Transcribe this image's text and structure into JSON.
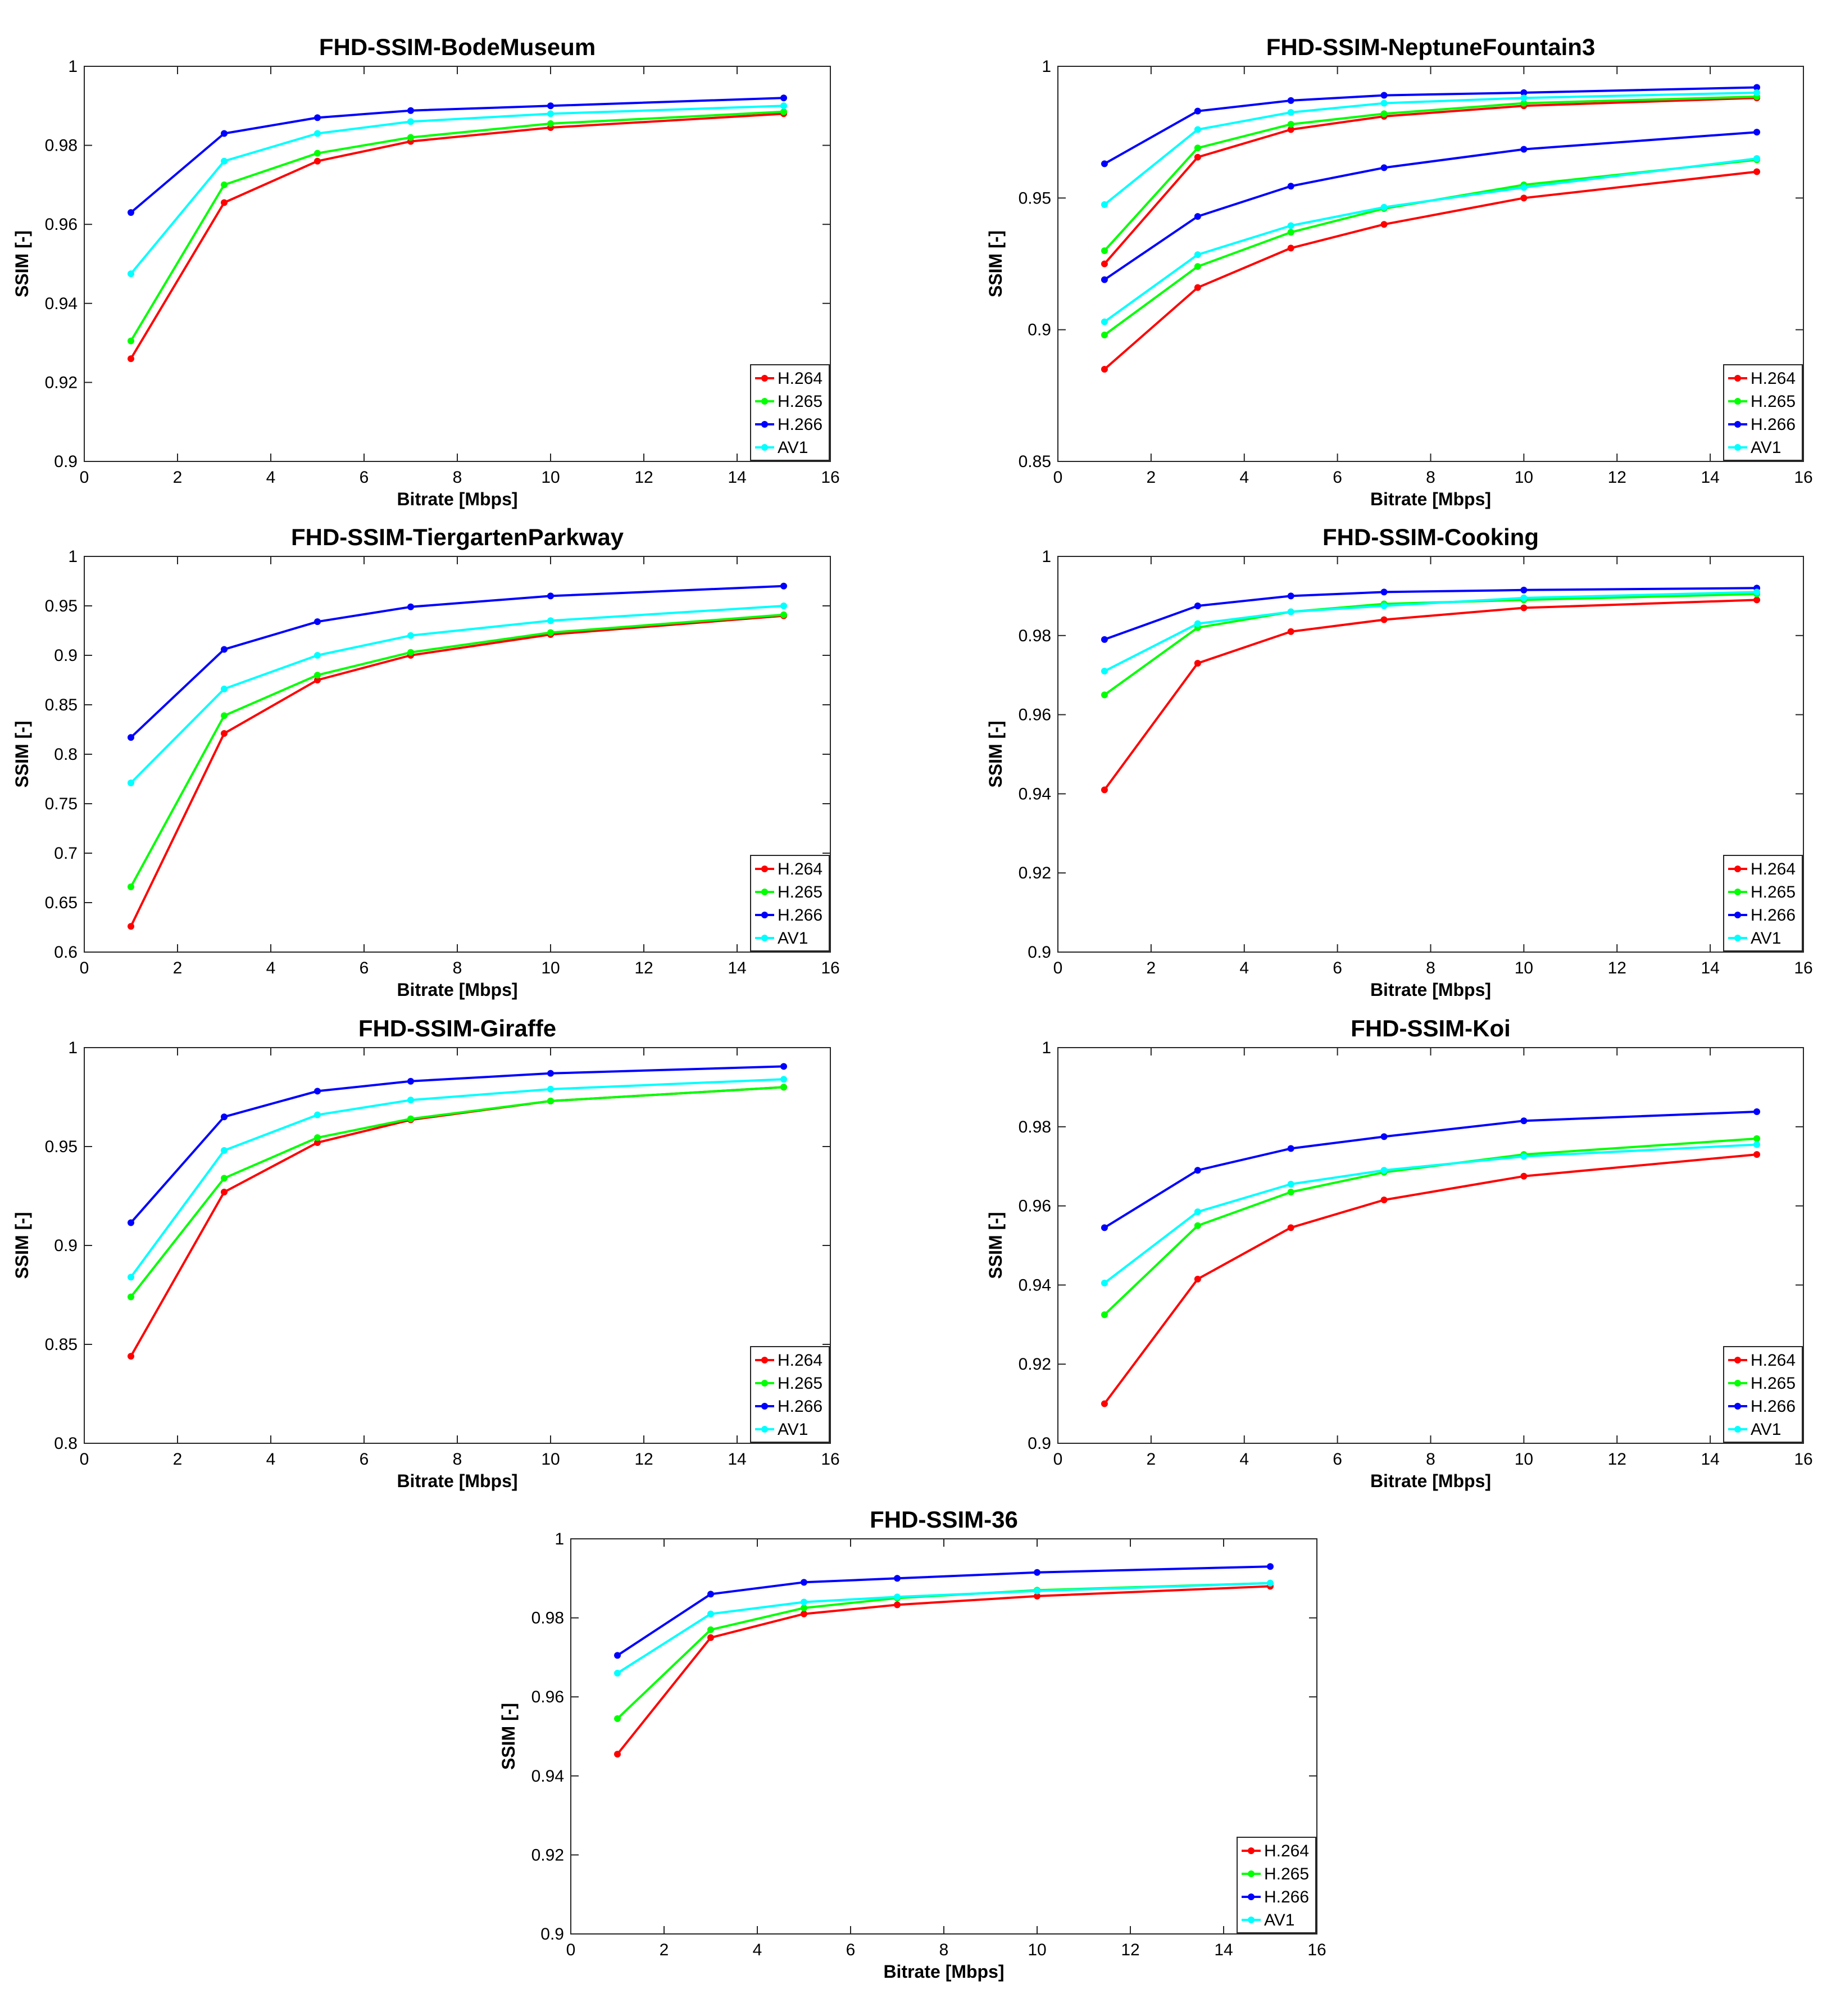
{
  "figure": {
    "grid": false
  },
  "chart_data": [
    {
      "type": "line",
      "title": "FHD-SSIM-BodeMuseum",
      "xlabel": "Bitrate [Mbps]",
      "ylabel": "SSIM [-]",
      "xlim": [
        0,
        16
      ],
      "ylim": [
        0.9,
        1
      ],
      "xticks": [
        0,
        2,
        4,
        6,
        8,
        10,
        12,
        14,
        16
      ],
      "xtick_labels": [
        "0",
        "2",
        "4",
        "6",
        "8",
        "10",
        "12",
        "14",
        "16"
      ],
      "yticks": [
        0.9,
        0.92,
        0.94,
        0.96,
        0.98,
        1
      ],
      "ytick_labels": [
        "0.9",
        "0.92",
        "0.94",
        "0.96",
        "0.98",
        "1"
      ],
      "legend_location": "bottom-right",
      "x": [
        1,
        3,
        5,
        7,
        10,
        15
      ],
      "series": [
        {
          "name": "H.264",
          "color": "#ff0000",
          "values": [
            0.926,
            0.9655,
            0.976,
            0.981,
            0.9845,
            0.988
          ]
        },
        {
          "name": "H.265",
          "color": "#00ff00",
          "values": [
            0.9305,
            0.97,
            0.978,
            0.982,
            0.9855,
            0.9885
          ]
        },
        {
          "name": "H.266",
          "color": "#0000ff",
          "values": [
            0.963,
            0.983,
            0.987,
            0.9888,
            0.99,
            0.992
          ]
        },
        {
          "name": "AV1",
          "color": "#00ffff",
          "values": [
            0.9475,
            0.976,
            0.983,
            0.986,
            0.988,
            0.99
          ]
        }
      ]
    },
    {
      "type": "line",
      "title": "FHD-SSIM-NeptuneFountain3",
      "xlabel": "Bitrate [Mbps]",
      "ylabel": "SSIM [-]",
      "xlim": [
        0,
        16
      ],
      "ylim": [
        0.85,
        1
      ],
      "xticks": [
        0,
        2,
        4,
        6,
        8,
        10,
        12,
        14,
        16
      ],
      "xtick_labels": [
        "0",
        "2",
        "4",
        "6",
        "8",
        "10",
        "12",
        "14",
        "16"
      ],
      "yticks": [
        0.85,
        0.9,
        0.95,
        1
      ],
      "ytick_labels": [
        "0.85",
        "0.9",
        "0.95",
        "1"
      ],
      "legend_location": "bottom-right",
      "x": [
        1,
        3,
        5,
        7,
        10,
        15
      ],
      "series": [
        {
          "name": "H.264",
          "color": "#ff0000",
          "values": [
            0.925,
            0.9655,
            0.976,
            0.981,
            0.985,
            0.988
          ]
        },
        {
          "name": "H.265",
          "color": "#00ff00",
          "values": [
            0.93,
            0.969,
            0.978,
            0.982,
            0.986,
            0.9885
          ]
        },
        {
          "name": "H.266",
          "color": "#0000ff",
          "values": [
            0.963,
            0.983,
            0.987,
            0.989,
            0.99,
            0.992
          ]
        },
        {
          "name": "AV1",
          "color": "#00ffff",
          "values": [
            0.9475,
            0.976,
            0.9825,
            0.986,
            0.988,
            0.99
          ]
        },
        {
          "name": "H.264",
          "color": "#ff0000",
          "values": [
            0.885,
            0.916,
            0.931,
            0.94,
            0.95,
            0.96
          ]
        },
        {
          "name": "H.265",
          "color": "#00ff00",
          "values": [
            0.898,
            0.924,
            0.937,
            0.946,
            0.955,
            0.9645
          ]
        },
        {
          "name": "H.266",
          "color": "#0000ff",
          "values": [
            0.919,
            0.943,
            0.9545,
            0.9615,
            0.9685,
            0.975
          ]
        },
        {
          "name": "AV1",
          "color": "#00ffff",
          "values": [
            0.903,
            0.9285,
            0.9395,
            0.9465,
            0.954,
            0.965
          ]
        }
      ],
      "legend_entries": 4
    },
    {
      "type": "line",
      "title": "FHD-SSIM-TiergartenParkway",
      "xlabel": "Bitrate [Mbps]",
      "ylabel": "SSIM [-]",
      "xlim": [
        0,
        16
      ],
      "ylim": [
        0.6,
        1
      ],
      "xticks": [
        0,
        2,
        4,
        6,
        8,
        10,
        12,
        14,
        16
      ],
      "xtick_labels": [
        "0",
        "2",
        "4",
        "6",
        "8",
        "10",
        "12",
        "14",
        "16"
      ],
      "yticks": [
        0.6,
        0.65,
        0.7,
        0.75,
        0.8,
        0.85,
        0.9,
        0.95,
        1
      ],
      "ytick_labels": [
        "0.6",
        "0.65",
        "0.7",
        "0.75",
        "0.8",
        "0.85",
        "0.9",
        "0.95",
        "1"
      ],
      "legend_location": "bottom-right",
      "x": [
        1,
        3,
        5,
        7,
        10,
        15
      ],
      "series": [
        {
          "name": "H.264",
          "color": "#ff0000",
          "values": [
            0.626,
            0.821,
            0.875,
            0.9,
            0.921,
            0.94
          ]
        },
        {
          "name": "H.265",
          "color": "#00ff00",
          "values": [
            0.666,
            0.839,
            0.88,
            0.903,
            0.923,
            0.941
          ]
        },
        {
          "name": "H.266",
          "color": "#0000ff",
          "values": [
            0.817,
            0.906,
            0.934,
            0.949,
            0.96,
            0.97
          ]
        },
        {
          "name": "AV1",
          "color": "#00ffff",
          "values": [
            0.771,
            0.866,
            0.9,
            0.92,
            0.935,
            0.95
          ]
        }
      ]
    },
    {
      "type": "line",
      "title": "FHD-SSIM-Cooking",
      "xlabel": "Bitrate [Mbps]",
      "ylabel": "SSIM [-]",
      "xlim": [
        0,
        16
      ],
      "ylim": [
        0.9,
        1
      ],
      "xticks": [
        0,
        2,
        4,
        6,
        8,
        10,
        12,
        14,
        16
      ],
      "xtick_labels": [
        "0",
        "2",
        "4",
        "6",
        "8",
        "10",
        "12",
        "14",
        "16"
      ],
      "yticks": [
        0.9,
        0.92,
        0.94,
        0.96,
        0.98,
        1
      ],
      "ytick_labels": [
        "0.9",
        "0.92",
        "0.94",
        "0.96",
        "0.98",
        "1"
      ],
      "legend_location": "bottom-right",
      "x": [
        1,
        3,
        5,
        7,
        10,
        15
      ],
      "series": [
        {
          "name": "H.264",
          "color": "#ff0000",
          "values": [
            0.941,
            0.973,
            0.981,
            0.984,
            0.987,
            0.989
          ]
        },
        {
          "name": "H.265",
          "color": "#00ff00",
          "values": [
            0.965,
            0.982,
            0.986,
            0.988,
            0.989,
            0.9905
          ]
        },
        {
          "name": "H.266",
          "color": "#0000ff",
          "values": [
            0.979,
            0.9875,
            0.99,
            0.991,
            0.9915,
            0.992
          ]
        },
        {
          "name": "AV1",
          "color": "#00ffff",
          "values": [
            0.971,
            0.983,
            0.986,
            0.9875,
            0.9895,
            0.991
          ]
        }
      ]
    },
    {
      "type": "line",
      "title": "FHD-SSIM-Giraffe",
      "xlabel": "Bitrate [Mbps]",
      "ylabel": "SSIM [-]",
      "xlim": [
        0,
        16
      ],
      "ylim": [
        0.8,
        1
      ],
      "xticks": [
        0,
        2,
        4,
        6,
        8,
        10,
        12,
        14,
        16
      ],
      "xtick_labels": [
        "0",
        "2",
        "4",
        "6",
        "8",
        "10",
        "12",
        "14",
        "16"
      ],
      "yticks": [
        0.8,
        0.85,
        0.9,
        0.95,
        1
      ],
      "ytick_labels": [
        "0.8",
        "0.85",
        "0.9",
        "0.95",
        "1"
      ],
      "legend_location": "bottom-right",
      "x": [
        1,
        3,
        5,
        7,
        10,
        15
      ],
      "series": [
        {
          "name": "H.264",
          "color": "#ff0000",
          "values": [
            0.844,
            0.927,
            0.952,
            0.9635,
            0.973,
            0.98
          ]
        },
        {
          "name": "H.265",
          "color": "#00ff00",
          "values": [
            0.874,
            0.934,
            0.9545,
            0.964,
            0.973,
            0.98
          ]
        },
        {
          "name": "H.266",
          "color": "#0000ff",
          "values": [
            0.9115,
            0.965,
            0.978,
            0.983,
            0.987,
            0.9905
          ]
        },
        {
          "name": "AV1",
          "color": "#00ffff",
          "values": [
            0.884,
            0.948,
            0.966,
            0.9735,
            0.979,
            0.984
          ]
        }
      ]
    },
    {
      "type": "line",
      "title": "FHD-SSIM-Koi",
      "xlabel": "Bitrate [Mbps]",
      "ylabel": "SSIM [-]",
      "xlim": [
        0,
        16
      ],
      "ylim": [
        0.9,
        1
      ],
      "xticks": [
        0,
        2,
        4,
        6,
        8,
        10,
        12,
        14,
        16
      ],
      "xtick_labels": [
        "0",
        "2",
        "4",
        "6",
        "8",
        "10",
        "12",
        "14",
        "16"
      ],
      "yticks": [
        0.9,
        0.92,
        0.94,
        0.96,
        0.98,
        1
      ],
      "ytick_labels": [
        "0.9",
        "0.92",
        "0.94",
        "0.96",
        "0.98",
        "1"
      ],
      "legend_location": "bottom-right",
      "x": [
        1,
        3,
        5,
        7,
        10,
        15
      ],
      "series": [
        {
          "name": "H.264",
          "color": "#ff0000",
          "values": [
            0.91,
            0.9415,
            0.9545,
            0.9615,
            0.9675,
            0.973
          ]
        },
        {
          "name": "H.265",
          "color": "#00ff00",
          "values": [
            0.9325,
            0.955,
            0.9635,
            0.9685,
            0.973,
            0.977
          ]
        },
        {
          "name": "H.266",
          "color": "#0000ff",
          "values": [
            0.9545,
            0.969,
            0.9745,
            0.9775,
            0.9815,
            0.9838
          ]
        },
        {
          "name": "AV1",
          "color": "#00ffff",
          "values": [
            0.9405,
            0.9585,
            0.9655,
            0.969,
            0.9725,
            0.9755
          ]
        }
      ]
    },
    {
      "type": "line",
      "title": "FHD-SSIM-36",
      "xlabel": "Bitrate [Mbps]",
      "ylabel": "SSIM [-]",
      "xlim": [
        0,
        16
      ],
      "ylim": [
        0.9,
        1
      ],
      "xticks": [
        0,
        2,
        4,
        6,
        8,
        10,
        12,
        14,
        16
      ],
      "xtick_labels": [
        "0",
        "2",
        "4",
        "6",
        "8",
        "10",
        "12",
        "14",
        "16"
      ],
      "yticks": [
        0.9,
        0.92,
        0.94,
        0.96,
        0.98,
        1
      ],
      "ytick_labels": [
        "0.9",
        "0.92",
        "0.94",
        "0.96",
        "0.98",
        "1"
      ],
      "legend_location": "bottom-right",
      "x": [
        1,
        3,
        5,
        7,
        10,
        15
      ],
      "series": [
        {
          "name": "H.264",
          "color": "#ff0000",
          "values": [
            0.9455,
            0.975,
            0.981,
            0.9833,
            0.9855,
            0.988
          ]
        },
        {
          "name": "H.265",
          "color": "#00ff00",
          "values": [
            0.9545,
            0.977,
            0.9825,
            0.985,
            0.987,
            0.9888
          ]
        },
        {
          "name": "H.266",
          "color": "#0000ff",
          "values": [
            0.9705,
            0.986,
            0.989,
            0.99,
            0.9915,
            0.993
          ]
        },
        {
          "name": "AV1",
          "color": "#00ffff",
          "values": [
            0.966,
            0.981,
            0.984,
            0.9853,
            0.9868,
            0.9888
          ]
        }
      ]
    }
  ]
}
